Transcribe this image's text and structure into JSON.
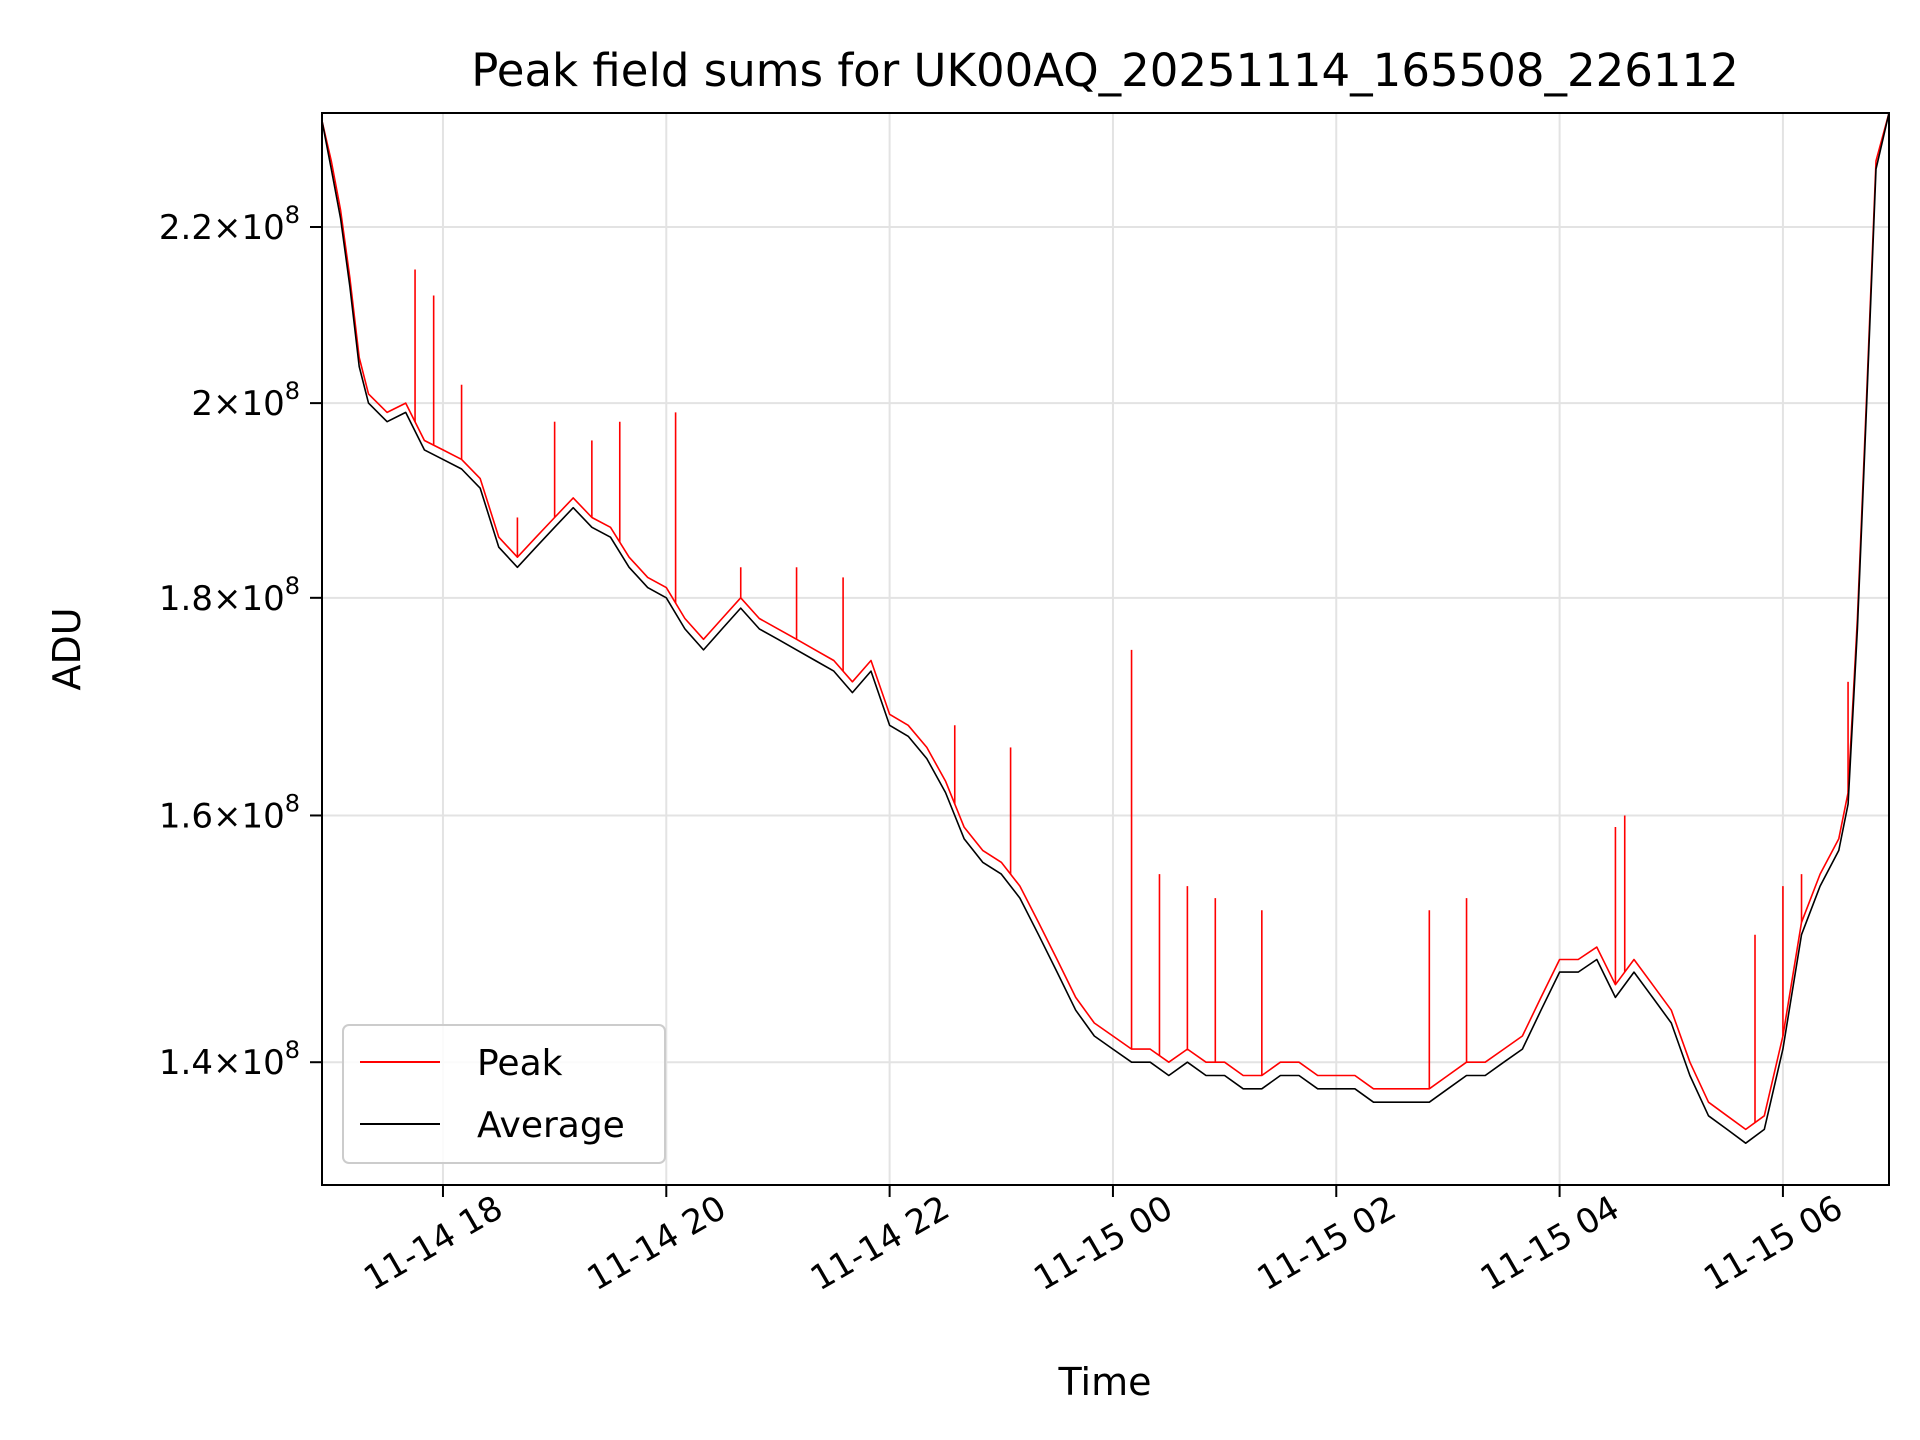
{
  "chart_data": {
    "type": "line",
    "title": "Peak field sums for UK00AQ_20251114_165508_226112",
    "xlabel": "Time",
    "ylabel": "ADU",
    "yscale": "log",
    "grid": true,
    "legend_position": "lower-left",
    "x_range": [
      "2025-11-14 16:55",
      "2025-11-15 06:57"
    ],
    "ylim": [
      131000000,
      234000000
    ],
    "x_ticks": [
      {
        "label": "11-14 18",
        "time": "2025-11-14 18:00"
      },
      {
        "label": "11-14 20",
        "time": "2025-11-14 20:00"
      },
      {
        "label": "11-14 22",
        "time": "2025-11-14 22:00"
      },
      {
        "label": "11-15 00",
        "time": "2025-11-15 00:00"
      },
      {
        "label": "11-15 02",
        "time": "2025-11-15 02:00"
      },
      {
        "label": "11-15 04",
        "time": "2025-11-15 04:00"
      },
      {
        "label": "11-15 06",
        "time": "2025-11-15 06:00"
      }
    ],
    "y_ticks": [
      {
        "mantissa": "1.4",
        "exponent": "8",
        "value": 140000000
      },
      {
        "mantissa": "1.6",
        "exponent": "8",
        "value": 160000000
      },
      {
        "mantissa": "1.8",
        "exponent": "8",
        "value": 180000000
      },
      {
        "mantissa": "2",
        "exponent": "8",
        "value": 200000000
      },
      {
        "mantissa": "2.2",
        "exponent": "8",
        "value": 220000000
      }
    ],
    "series": [
      {
        "name": "Peak",
        "color": "#ff0000",
        "points": [
          [
            "2025-11-14 16:55",
            233000000
          ],
          [
            "2025-11-14 17:00",
            228000000
          ],
          [
            "2025-11-14 17:05",
            222000000
          ],
          [
            "2025-11-14 17:10",
            214000000
          ],
          [
            "2025-11-14 17:15",
            205000000
          ],
          [
            "2025-11-14 17:20",
            201000000
          ],
          [
            "2025-11-14 17:30",
            199000000
          ],
          [
            "2025-11-14 17:40",
            200000000
          ],
          [
            "2025-11-14 17:50",
            196000000
          ],
          [
            "2025-11-14 18:00",
            195000000
          ],
          [
            "2025-11-14 18:10",
            194000000
          ],
          [
            "2025-11-14 18:20",
            192000000
          ],
          [
            "2025-11-14 18:30",
            186000000
          ],
          [
            "2025-11-14 18:40",
            184000000
          ],
          [
            "2025-11-14 18:50",
            186000000
          ],
          [
            "2025-11-14 19:00",
            188000000
          ],
          [
            "2025-11-14 19:10",
            190000000
          ],
          [
            "2025-11-14 19:20",
            188000000
          ],
          [
            "2025-11-14 19:30",
            187000000
          ],
          [
            "2025-11-14 19:40",
            184000000
          ],
          [
            "2025-11-14 19:50",
            182000000
          ],
          [
            "2025-11-14 20:00",
            181000000
          ],
          [
            "2025-11-14 20:10",
            178000000
          ],
          [
            "2025-11-14 20:20",
            176000000
          ],
          [
            "2025-11-14 20:30",
            178000000
          ],
          [
            "2025-11-14 20:40",
            180000000
          ],
          [
            "2025-11-14 20:50",
            178000000
          ],
          [
            "2025-11-14 21:00",
            177000000
          ],
          [
            "2025-11-14 21:10",
            176000000
          ],
          [
            "2025-11-14 21:20",
            175000000
          ],
          [
            "2025-11-14 21:30",
            174000000
          ],
          [
            "2025-11-14 21:40",
            172000000
          ],
          [
            "2025-11-14 21:50",
            174000000
          ],
          [
            "2025-11-14 22:00",
            169000000
          ],
          [
            "2025-11-14 22:10",
            168000000
          ],
          [
            "2025-11-14 22:20",
            166000000
          ],
          [
            "2025-11-14 22:30",
            163000000
          ],
          [
            "2025-11-14 22:40",
            159000000
          ],
          [
            "2025-11-14 22:50",
            157000000
          ],
          [
            "2025-11-14 23:00",
            156000000
          ],
          [
            "2025-11-14 23:10",
            154000000
          ],
          [
            "2025-11-14 23:20",
            151000000
          ],
          [
            "2025-11-14 23:30",
            148000000
          ],
          [
            "2025-11-14 23:40",
            145000000
          ],
          [
            "2025-11-14 23:50",
            143000000
          ],
          [
            "2025-11-15 00:00",
            142000000
          ],
          [
            "2025-11-15 00:10",
            141000000
          ],
          [
            "2025-11-15 00:20",
            141000000
          ],
          [
            "2025-11-15 00:30",
            140000000
          ],
          [
            "2025-11-15 00:40",
            141000000
          ],
          [
            "2025-11-15 00:50",
            140000000
          ],
          [
            "2025-11-15 01:00",
            140000000
          ],
          [
            "2025-11-15 01:10",
            139000000
          ],
          [
            "2025-11-15 01:20",
            139000000
          ],
          [
            "2025-11-15 01:30",
            140000000
          ],
          [
            "2025-11-15 01:40",
            140000000
          ],
          [
            "2025-11-15 01:50",
            139000000
          ],
          [
            "2025-11-15 02:00",
            139000000
          ],
          [
            "2025-11-15 02:10",
            139000000
          ],
          [
            "2025-11-15 02:20",
            138000000
          ],
          [
            "2025-11-15 02:30",
            138000000
          ],
          [
            "2025-11-15 02:40",
            138000000
          ],
          [
            "2025-11-15 02:50",
            138000000
          ],
          [
            "2025-11-15 03:00",
            139000000
          ],
          [
            "2025-11-15 03:10",
            140000000
          ],
          [
            "2025-11-15 03:20",
            140000000
          ],
          [
            "2025-11-15 03:30",
            141000000
          ],
          [
            "2025-11-15 03:40",
            142000000
          ],
          [
            "2025-11-15 03:50",
            145000000
          ],
          [
            "2025-11-15 04:00",
            148000000
          ],
          [
            "2025-11-15 04:10",
            148000000
          ],
          [
            "2025-11-15 04:20",
            149000000
          ],
          [
            "2025-11-15 04:30",
            146000000
          ],
          [
            "2025-11-15 04:40",
            148000000
          ],
          [
            "2025-11-15 04:50",
            146000000
          ],
          [
            "2025-11-15 05:00",
            144000000
          ],
          [
            "2025-11-15 05:10",
            140000000
          ],
          [
            "2025-11-15 05:20",
            137000000
          ],
          [
            "2025-11-15 05:30",
            136000000
          ],
          [
            "2025-11-15 05:40",
            135000000
          ],
          [
            "2025-11-15 05:50",
            136000000
          ],
          [
            "2025-11-15 06:00",
            142000000
          ],
          [
            "2025-11-15 06:10",
            151000000
          ],
          [
            "2025-11-15 06:20",
            155000000
          ],
          [
            "2025-11-15 06:30",
            158000000
          ],
          [
            "2025-11-15 06:35",
            162000000
          ],
          [
            "2025-11-15 06:40",
            178000000
          ],
          [
            "2025-11-15 06:45",
            201000000
          ],
          [
            "2025-11-15 06:50",
            228000000
          ],
          [
            "2025-11-15 06:57",
            234000000
          ]
        ],
        "spikes": [
          [
            "2025-11-14 17:45",
            215000000
          ],
          [
            "2025-11-14 17:55",
            212000000
          ],
          [
            "2025-11-14 18:10",
            202000000
          ],
          [
            "2025-11-14 18:40",
            188000000
          ],
          [
            "2025-11-14 19:00",
            198000000
          ],
          [
            "2025-11-14 19:20",
            196000000
          ],
          [
            "2025-11-14 19:35",
            198000000
          ],
          [
            "2025-11-14 20:05",
            199000000
          ],
          [
            "2025-11-14 20:40",
            183000000
          ],
          [
            "2025-11-14 21:10",
            183000000
          ],
          [
            "2025-11-14 21:35",
            182000000
          ],
          [
            "2025-11-14 22:35",
            168000000
          ],
          [
            "2025-11-14 23:05",
            166000000
          ],
          [
            "2025-11-15 00:10",
            175000000
          ],
          [
            "2025-11-15 00:25",
            155000000
          ],
          [
            "2025-11-15 00:40",
            154000000
          ],
          [
            "2025-11-15 00:55",
            153000000
          ],
          [
            "2025-11-15 01:20",
            152000000
          ],
          [
            "2025-11-15 02:50",
            152000000
          ],
          [
            "2025-11-15 03:10",
            153000000
          ],
          [
            "2025-11-15 04:30",
            159000000
          ],
          [
            "2025-11-15 04:35",
            160000000
          ],
          [
            "2025-11-15 05:45",
            150000000
          ],
          [
            "2025-11-15 06:00",
            154000000
          ],
          [
            "2025-11-15 06:10",
            155000000
          ],
          [
            "2025-11-15 06:35",
            172000000
          ]
        ]
      },
      {
        "name": "Average",
        "color": "#000000",
        "points": [
          [
            "2025-11-14 16:55",
            233000000
          ],
          [
            "2025-11-14 17:00",
            227000000
          ],
          [
            "2025-11-14 17:05",
            221000000
          ],
          [
            "2025-11-14 17:10",
            213000000
          ],
          [
            "2025-11-14 17:15",
            204000000
          ],
          [
            "2025-11-14 17:20",
            200000000
          ],
          [
            "2025-11-14 17:30",
            198000000
          ],
          [
            "2025-11-14 17:40",
            199000000
          ],
          [
            "2025-11-14 17:50",
            195000000
          ],
          [
            "2025-11-14 18:00",
            194000000
          ],
          [
            "2025-11-14 18:10",
            193000000
          ],
          [
            "2025-11-14 18:20",
            191000000
          ],
          [
            "2025-11-14 18:30",
            185000000
          ],
          [
            "2025-11-14 18:40",
            183000000
          ],
          [
            "2025-11-14 18:50",
            185000000
          ],
          [
            "2025-11-14 19:00",
            187000000
          ],
          [
            "2025-11-14 19:10",
            189000000
          ],
          [
            "2025-11-14 19:20",
            187000000
          ],
          [
            "2025-11-14 19:30",
            186000000
          ],
          [
            "2025-11-14 19:40",
            183000000
          ],
          [
            "2025-11-14 19:50",
            181000000
          ],
          [
            "2025-11-14 20:00",
            180000000
          ],
          [
            "2025-11-14 20:10",
            177000000
          ],
          [
            "2025-11-14 20:20",
            175000000
          ],
          [
            "2025-11-14 20:30",
            177000000
          ],
          [
            "2025-11-14 20:40",
            179000000
          ],
          [
            "2025-11-14 20:50",
            177000000
          ],
          [
            "2025-11-14 21:00",
            176000000
          ],
          [
            "2025-11-14 21:10",
            175000000
          ],
          [
            "2025-11-14 21:20",
            174000000
          ],
          [
            "2025-11-14 21:30",
            173000000
          ],
          [
            "2025-11-14 21:40",
            171000000
          ],
          [
            "2025-11-14 21:50",
            173000000
          ],
          [
            "2025-11-14 22:00",
            168000000
          ],
          [
            "2025-11-14 22:10",
            167000000
          ],
          [
            "2025-11-14 22:20",
            165000000
          ],
          [
            "2025-11-14 22:30",
            162000000
          ],
          [
            "2025-11-14 22:40",
            158000000
          ],
          [
            "2025-11-14 22:50",
            156000000
          ],
          [
            "2025-11-14 23:00",
            155000000
          ],
          [
            "2025-11-14 23:10",
            153000000
          ],
          [
            "2025-11-14 23:20",
            150000000
          ],
          [
            "2025-11-14 23:30",
            147000000
          ],
          [
            "2025-11-14 23:40",
            144000000
          ],
          [
            "2025-11-14 23:50",
            142000000
          ],
          [
            "2025-11-15 00:00",
            141000000
          ],
          [
            "2025-11-15 00:10",
            140000000
          ],
          [
            "2025-11-15 00:20",
            140000000
          ],
          [
            "2025-11-15 00:30",
            139000000
          ],
          [
            "2025-11-15 00:40",
            140000000
          ],
          [
            "2025-11-15 00:50",
            139000000
          ],
          [
            "2025-11-15 01:00",
            139000000
          ],
          [
            "2025-11-15 01:10",
            138000000
          ],
          [
            "2025-11-15 01:20",
            138000000
          ],
          [
            "2025-11-15 01:30",
            139000000
          ],
          [
            "2025-11-15 01:40",
            139000000
          ],
          [
            "2025-11-15 01:50",
            138000000
          ],
          [
            "2025-11-15 02:00",
            138000000
          ],
          [
            "2025-11-15 02:10",
            138000000
          ],
          [
            "2025-11-15 02:20",
            137000000
          ],
          [
            "2025-11-15 02:30",
            137000000
          ],
          [
            "2025-11-15 02:40",
            137000000
          ],
          [
            "2025-11-15 02:50",
            137000000
          ],
          [
            "2025-11-15 03:00",
            138000000
          ],
          [
            "2025-11-15 03:10",
            139000000
          ],
          [
            "2025-11-15 03:20",
            139000000
          ],
          [
            "2025-11-15 03:30",
            140000000
          ],
          [
            "2025-11-15 03:40",
            141000000
          ],
          [
            "2025-11-15 03:50",
            144000000
          ],
          [
            "2025-11-15 04:00",
            147000000
          ],
          [
            "2025-11-15 04:10",
            147000000
          ],
          [
            "2025-11-15 04:20",
            148000000
          ],
          [
            "2025-11-15 04:30",
            145000000
          ],
          [
            "2025-11-15 04:40",
            147000000
          ],
          [
            "2025-11-15 04:50",
            145000000
          ],
          [
            "2025-11-15 05:00",
            143000000
          ],
          [
            "2025-11-15 05:10",
            139000000
          ],
          [
            "2025-11-15 05:20",
            136000000
          ],
          [
            "2025-11-15 05:30",
            135000000
          ],
          [
            "2025-11-15 05:40",
            134000000
          ],
          [
            "2025-11-15 05:50",
            135000000
          ],
          [
            "2025-11-15 06:00",
            141000000
          ],
          [
            "2025-11-15 06:10",
            150000000
          ],
          [
            "2025-11-15 06:20",
            154000000
          ],
          [
            "2025-11-15 06:30",
            157000000
          ],
          [
            "2025-11-15 06:35",
            161000000
          ],
          [
            "2025-11-15 06:40",
            177000000
          ],
          [
            "2025-11-15 06:45",
            200000000
          ],
          [
            "2025-11-15 06:50",
            227000000
          ],
          [
            "2025-11-15 06:57",
            234000000
          ]
        ]
      }
    ]
  }
}
